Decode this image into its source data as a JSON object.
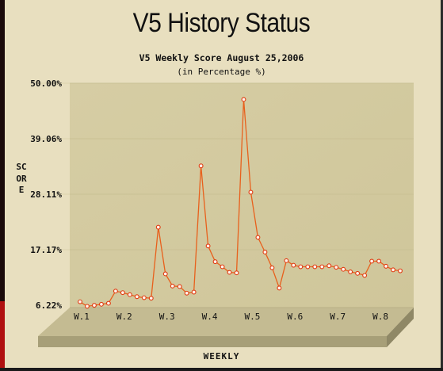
{
  "title": "V5 History Status",
  "chart_data": {
    "type": "line",
    "title": "V5 Weekly Score August 25,2006",
    "subtitle": "(in Percentage %)",
    "xlabel": "WEEKLY",
    "ylabel": "SCORE",
    "ylim": [
      6.22,
      50.0
    ],
    "yticks": [
      "6.22%",
      "17.17%",
      "28.11%",
      "39.06%",
      "50.00%"
    ],
    "ytick_values": [
      6.22,
      17.17,
      28.11,
      39.06,
      50.0
    ],
    "xticks": [
      "W.1",
      "W.2",
      "W.3",
      "W.4",
      "W.5",
      "W.6",
      "W.7",
      "W.8"
    ],
    "xtick_index": [
      0,
      6,
      12,
      18,
      24,
      30,
      36,
      42
    ],
    "grid": true,
    "series_color": "#e8601c",
    "series": [
      {
        "values": [
          6.9,
          6.0,
          6.2,
          6.4,
          6.6,
          9.0,
          8.7,
          8.3,
          7.9,
          7.7,
          7.6,
          21.6,
          12.4,
          10.0,
          9.9,
          8.6,
          8.8,
          33.7,
          17.9,
          14.8,
          13.8,
          12.7,
          12.6,
          46.8,
          28.5,
          19.6,
          16.7,
          13.6,
          9.6,
          15.0,
          14.1,
          13.8,
          13.8,
          13.8,
          13.8,
          14.0,
          13.7,
          13.3,
          12.8,
          12.5,
          12.1,
          14.9,
          14.9,
          13.9,
          13.2,
          13.0
        ]
      }
    ]
  }
}
